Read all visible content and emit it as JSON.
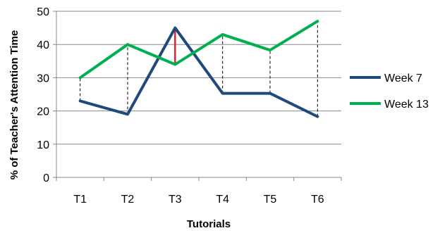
{
  "chart_data": {
    "type": "line",
    "title": "",
    "xlabel": "Tutorials",
    "ylabel": "% of Teacher's  Attention Time",
    "categories": [
      "T1",
      "T2",
      "T3",
      "T4",
      "T5",
      "T6"
    ],
    "ylim": [
      0,
      50
    ],
    "yticks": [
      0,
      10,
      20,
      30,
      40,
      50
    ],
    "grid": true,
    "legend_position": "right",
    "series": [
      {
        "name": "Week 7",
        "color": "#1f497d",
        "values": [
          23,
          19,
          45,
          25.3,
          25.3,
          18.3
        ]
      },
      {
        "name": "Week 13",
        "color": "#00b050",
        "values": [
          30,
          40,
          34,
          43,
          38.3,
          47
        ]
      }
    ],
    "difference_lines": {
      "style": "dashed",
      "color": "#000000",
      "highlight_category": "T3",
      "highlight_color": "#e8202a"
    }
  }
}
